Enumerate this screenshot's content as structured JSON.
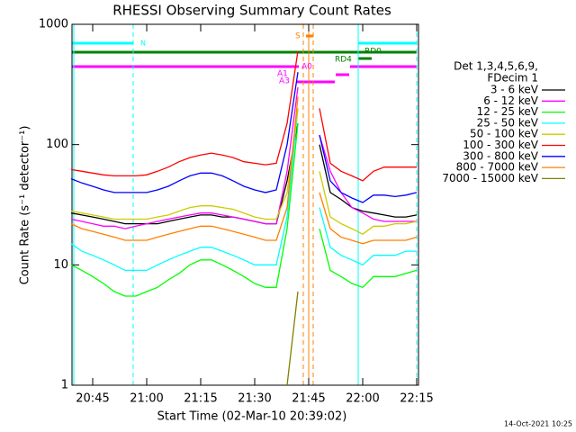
{
  "chart_data": {
    "type": "line",
    "title": "RHESSI Observing Summary Count Rates",
    "xlabel": "Start Time (02-Mar-10 20:39:02)",
    "ylabel": "Count Rate (s⁻¹ detector⁻¹)",
    "legend_title": [
      "Det 1,3,4,5,6,9,",
      "FDecim 1"
    ],
    "timestamp": "14-Oct-2021 10:25",
    "annotations": [
      "N",
      "S",
      "A1",
      "A0",
      "A3",
      "RD4",
      "RD0"
    ],
    "log_y": true,
    "xlim": [
      "20:39:15",
      "22:15:30"
    ],
    "xticks": [
      "20:45",
      "21:00",
      "21:15",
      "21:30",
      "21:45",
      "22:00",
      "22:15"
    ],
    "ylim": [
      1,
      1000
    ],
    "yticks": [
      1,
      10,
      100,
      1000
    ],
    "x": [
      "20:39",
      "20:42",
      "20:45",
      "20:48",
      "20:51",
      "20:54",
      "20:57",
      "21:00",
      "21:03",
      "21:06",
      "21:09",
      "21:12",
      "21:15",
      "21:18",
      "21:21",
      "21:24",
      "21:27",
      "21:30",
      "21:33",
      "21:36",
      "21:39",
      "21:42",
      "21:45",
      "21:48",
      "21:51",
      "21:54",
      "21:57",
      "22:00",
      "22:03",
      "22:06",
      "22:09",
      "22:12",
      "22:15"
    ],
    "series": [
      {
        "name": "3 - 6 keV",
        "color": "#000000",
        "values": [
          27,
          26,
          25,
          24,
          23,
          22,
          22,
          22,
          22,
          23,
          24,
          25,
          26,
          26,
          25,
          25,
          24,
          23,
          22,
          22,
          50,
          150,
          null,
          100,
          40,
          35,
          30,
          28,
          27,
          26,
          25,
          25,
          26
        ]
      },
      {
        "name": "6 - 12 keV",
        "color": "#ff00ff",
        "values": [
          24,
          23,
          22,
          21,
          21,
          20,
          21,
          22,
          23,
          24,
          25,
          26,
          27,
          27,
          26,
          25,
          24,
          23,
          22,
          22,
          60,
          300,
          null,
          120,
          60,
          40,
          30,
          27,
          24,
          23,
          23,
          23,
          23
        ]
      },
      {
        "name": "12 - 25 keV",
        "color": "#00ff00",
        "values": [
          10,
          9,
          8,
          7,
          6,
          5.5,
          5.5,
          6,
          6.5,
          7.5,
          8.5,
          10,
          11,
          11,
          10,
          9,
          8,
          7,
          6.5,
          6.5,
          20,
          150,
          null,
          20,
          9,
          8,
          7,
          6.5,
          8,
          8,
          8,
          8.5,
          9
        ]
      },
      {
        "name": "25 - 50 keV",
        "color": "#00ffff",
        "values": [
          15,
          13,
          12,
          11,
          10,
          9,
          9,
          9,
          10,
          11,
          12,
          13,
          14,
          14,
          13,
          12,
          11,
          10,
          10,
          10,
          25,
          200,
          null,
          30,
          14,
          12,
          11,
          10,
          12,
          12,
          12,
          13,
          13
        ]
      },
      {
        "name": "50 - 100 keV",
        "color": "#cccc00",
        "values": [
          28,
          27,
          26,
          25,
          24,
          24,
          24,
          24,
          25,
          26,
          28,
          30,
          31,
          31,
          30,
          29,
          27,
          25,
          24,
          24,
          40,
          200,
          null,
          60,
          25,
          22,
          20,
          18,
          21,
          21,
          22,
          22,
          23
        ]
      },
      {
        "name": "100 - 300 keV",
        "color": "#ff0000",
        "values": [
          62,
          60,
          58,
          56,
          55,
          55,
          55,
          56,
          60,
          65,
          72,
          78,
          82,
          85,
          82,
          78,
          72,
          70,
          68,
          70,
          150,
          600,
          null,
          200,
          70,
          60,
          55,
          50,
          60,
          65,
          65,
          65,
          65
        ]
      },
      {
        "name": "300 - 800 keV",
        "color": "#0000ff",
        "values": [
          52,
          48,
          45,
          42,
          40,
          40,
          40,
          40,
          42,
          45,
          50,
          55,
          58,
          58,
          55,
          50,
          45,
          42,
          40,
          42,
          100,
          400,
          null,
          120,
          50,
          40,
          36,
          33,
          38,
          38,
          37,
          38,
          40
        ]
      },
      {
        "name": "800 - 7000 keV",
        "color": "#ff8000",
        "values": [
          22,
          20,
          19,
          18,
          17,
          16,
          16,
          16,
          17,
          18,
          19,
          20,
          21,
          21,
          20,
          19,
          18,
          17,
          16,
          16,
          30,
          250,
          null,
          40,
          20,
          17,
          16,
          15,
          16,
          16,
          16,
          16,
          17
        ]
      },
      {
        "name": "7000 - 15000 keV",
        "color": "#808000",
        "values": [
          null,
          null,
          null,
          null,
          null,
          null,
          null,
          null,
          null,
          null,
          null,
          null,
          null,
          null,
          null,
          null,
          null,
          null,
          null,
          null,
          1,
          6,
          null,
          null,
          null,
          null,
          null,
          null,
          null,
          null,
          null,
          null,
          null
        ]
      }
    ]
  }
}
